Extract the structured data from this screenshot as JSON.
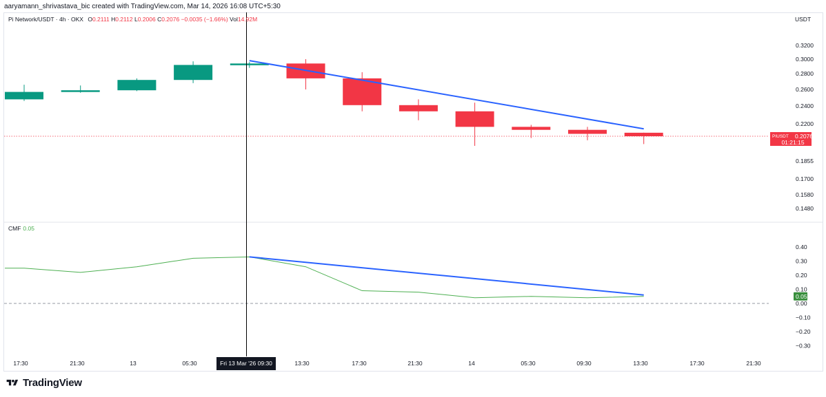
{
  "header": {
    "creator_line": "aaryamann_shrivastava_bic created with TradingView.com, Mar 14, 2026 16:08 UTC+5:30"
  },
  "legend": {
    "symbol": "Pi Network/USDT · 4h · OKX",
    "open_label": "O",
    "open": "0.2111",
    "high_label": "H",
    "high": "0.2112",
    "low_label": "L",
    "low": "0.2006",
    "close_label": "C",
    "close": "0.2076",
    "change": "−0.0035 (−1.66%)",
    "vol_label": "Vol",
    "vol": "14.92M"
  },
  "currency": "USDT",
  "price_tag": {
    "symbol": "PIUSDT",
    "price": "0.2076",
    "countdown": "01:21:15"
  },
  "indicator": {
    "name": "CMF",
    "value": "0.05",
    "tag": "0.05"
  },
  "branding": {
    "logo_text": "TradingView"
  },
  "colors": {
    "up": "#089981",
    "down": "#f23645",
    "trendline": "#2962ff",
    "cmf_line": "#4caf50",
    "crosshair": "#000000"
  },
  "chart_data": [
    {
      "type": "candlestick",
      "title": "",
      "y_ticks": [
        "0.3200",
        "0.3000",
        "0.2800",
        "0.2600",
        "0.2400",
        "0.2200",
        "0.1855",
        "0.1700",
        "0.1580",
        "0.1480"
      ],
      "y_tick_values": [
        0.32,
        0.3,
        0.28,
        0.26,
        0.24,
        0.22,
        0.1855,
        0.17,
        0.158,
        0.148
      ],
      "x_ticks": [
        "17:30",
        "21:30",
        "13",
        "05:30",
        "13:30",
        "17:30",
        "21:30",
        "14",
        "05:30",
        "09:30",
        "13:30",
        "17:30",
        "21:30"
      ],
      "crosshair_x_label": "Fri 13 Mar '26  09:30",
      "series": [
        {
          "open": 0.248,
          "high": 0.266,
          "low": 0.246,
          "close": 0.257
        },
        {
          "open": 0.257,
          "high": 0.265,
          "low": 0.256,
          "close": 0.259
        },
        {
          "open": 0.259,
          "high": 0.274,
          "low": 0.258,
          "close": 0.272
        },
        {
          "open": 0.272,
          "high": 0.297,
          "low": 0.268,
          "close": 0.292
        },
        {
          "open": 0.292,
          "high": 0.296,
          "low": 0.288,
          "close": 0.294
        },
        {
          "open": 0.294,
          "high": 0.3,
          "low": 0.26,
          "close": 0.274
        },
        {
          "open": 0.274,
          "high": 0.282,
          "low": 0.234,
          "close": 0.241
        },
        {
          "open": 0.241,
          "high": 0.248,
          "low": 0.224,
          "close": 0.234
        },
        {
          "open": 0.234,
          "high": 0.244,
          "low": 0.199,
          "close": 0.217
        },
        {
          "open": 0.217,
          "high": 0.219,
          "low": 0.206,
          "close": 0.214
        },
        {
          "open": 0.214,
          "high": 0.217,
          "low": 0.204,
          "close": 0.21
        },
        {
          "open": 0.2111,
          "high": 0.2112,
          "low": 0.2006,
          "close": 0.2076
        }
      ],
      "last_price": 0.2076,
      "trendline": {
        "from_index": 4.0,
        "from_price": 0.298,
        "to_index": 11.0,
        "to_price": 0.215
      }
    },
    {
      "type": "line",
      "title": "CMF",
      "y_ticks": [
        "0.40",
        "0.30",
        "0.20",
        "0.10",
        "0.00",
        "−0.10",
        "−0.20",
        "−0.30"
      ],
      "y_tick_values": [
        0.4,
        0.3,
        0.2,
        0.1,
        0.0,
        -0.1,
        -0.2,
        -0.3
      ],
      "x_index": [
        -0.3,
        0,
        1,
        2,
        3,
        4,
        5,
        6,
        7,
        8,
        9,
        10,
        11
      ],
      "values": [
        0.25,
        0.25,
        0.22,
        0.26,
        0.32,
        0.33,
        0.26,
        0.09,
        0.08,
        0.04,
        0.05,
        0.04,
        0.05
      ],
      "zero_line": 0.0,
      "trendline": {
        "from_index": 4.0,
        "from_value": 0.33,
        "to_index": 11.0,
        "to_value": 0.06
      }
    }
  ]
}
